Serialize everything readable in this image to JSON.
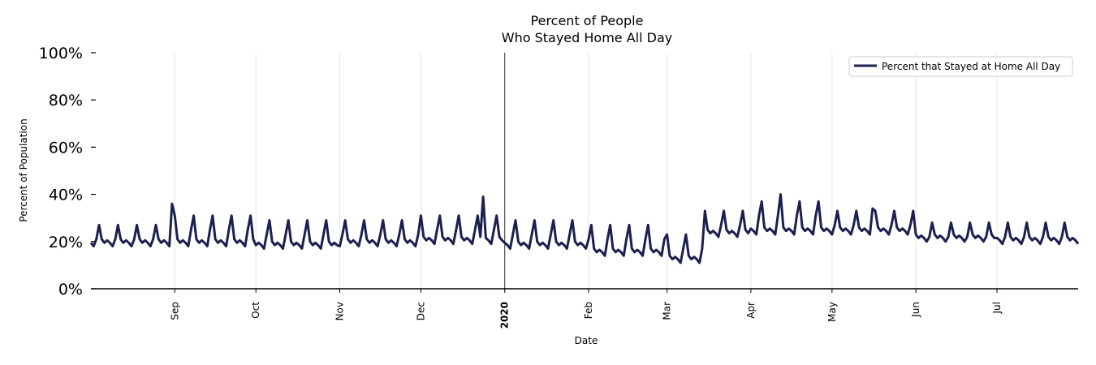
{
  "chart_data": {
    "type": "line",
    "title_line1": "Percent of People",
    "title_line2": "Who Stayed Home All Day",
    "xlabel": "Date",
    "ylabel": "Percent of Population",
    "ylim": [
      0,
      100
    ],
    "yticks": [
      {
        "value": 0,
        "label": "0%"
      },
      {
        "value": 20,
        "label": "20%"
      },
      {
        "value": 40,
        "label": "40%"
      },
      {
        "value": 60,
        "label": "60%"
      },
      {
        "value": 80,
        "label": "80%"
      },
      {
        "value": 100,
        "label": "100%"
      }
    ],
    "x_start": "2019-08-01",
    "x_end": "2020-07-31",
    "xticks": [
      {
        "date": "2019-09-01",
        "label": "Sep",
        "bold": false
      },
      {
        "date": "2019-10-01",
        "label": "Oct",
        "bold": false
      },
      {
        "date": "2019-11-01",
        "label": "Nov",
        "bold": false
      },
      {
        "date": "2019-12-01",
        "label": "Dec",
        "bold": false
      },
      {
        "date": "2020-01-01",
        "label": "2020",
        "bold": true
      },
      {
        "date": "2020-02-01",
        "label": "Feb",
        "bold": false
      },
      {
        "date": "2020-03-01",
        "label": "Mar",
        "bold": false
      },
      {
        "date": "2020-04-01",
        "label": "Apr",
        "bold": false
      },
      {
        "date": "2020-05-01",
        "label": "May",
        "bold": false
      },
      {
        "date": "2020-06-01",
        "label": "Jun",
        "bold": false
      },
      {
        "date": "2020-07-01",
        "label": "Jul",
        "bold": false
      }
    ],
    "vline_date": "2020-01-01",
    "grid": "vertical",
    "legend_position": "top-right",
    "series": [
      {
        "name": "Percent that Stayed at Home All Day",
        "color": "#1d1f4f",
        "segments": [
          {
            "start": "2019-08-01",
            "end": "2019-08-31",
            "weekday": 20,
            "weekend": 27
          },
          {
            "start": "2019-09-01",
            "end": "2019-09-30",
            "weekday": 20,
            "weekend": 31
          },
          {
            "start": "2019-10-01",
            "end": "2019-10-31",
            "weekday": 19,
            "weekend": 29
          },
          {
            "start": "2019-11-01",
            "end": "2019-11-30",
            "weekday": 20,
            "weekend": 29
          },
          {
            "start": "2019-12-01",
            "end": "2019-12-31",
            "weekday": 21,
            "weekend": 31
          },
          {
            "start": "2020-01-01",
            "end": "2020-01-31",
            "weekday": 19,
            "weekend": 29
          },
          {
            "start": "2020-02-01",
            "end": "2020-02-29",
            "weekday": 16,
            "weekend": 27
          },
          {
            "start": "2020-03-01",
            "end": "2020-03-14",
            "weekday": 13,
            "weekend": 23
          },
          {
            "start": "2020-03-15",
            "end": "2020-03-31",
            "weekday": 24,
            "weekend": 33
          },
          {
            "start": "2020-04-01",
            "end": "2020-04-30",
            "weekday": 25,
            "weekend": 37
          },
          {
            "start": "2020-05-01",
            "end": "2020-05-31",
            "weekday": 25,
            "weekend": 33
          },
          {
            "start": "2020-06-01",
            "end": "2020-06-30",
            "weekday": 22,
            "weekend": 28
          },
          {
            "start": "2020-07-01",
            "end": "2020-07-31",
            "weekday": 21,
            "weekend": 28
          }
        ],
        "peaks": [
          {
            "date": "2019-08-31",
            "value": 36
          },
          {
            "date": "2019-12-24",
            "value": 39
          },
          {
            "date": "2020-04-12",
            "value": 40
          },
          {
            "date": "2020-05-16",
            "value": 34
          }
        ]
      }
    ]
  }
}
